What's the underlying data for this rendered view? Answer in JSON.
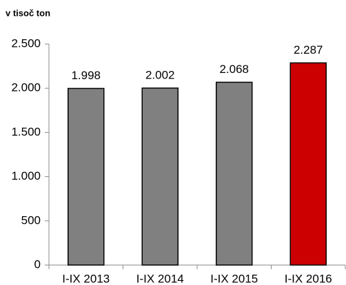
{
  "chart_data": {
    "type": "bar",
    "title": "v tisoč ton",
    "categories": [
      "I-IX 2013",
      "I-IX 2014",
      "I-IX 2015",
      "I-IX 2016"
    ],
    "values": [
      1998,
      2002,
      2068,
      2287
    ],
    "value_labels": [
      "1.998",
      "2.002",
      "2.068",
      "2.287"
    ],
    "colors": [
      "#808080",
      "#808080",
      "#808080",
      "#cc0000"
    ],
    "ylim": [
      0,
      2500
    ],
    "yticks": [
      0,
      500,
      {
        "value": 1000,
        "label": "1.000"
      },
      {
        "value": 1500,
        "label": "1.500"
      },
      {
        "value": 2000,
        "label": "2.000"
      },
      {
        "value": 2500,
        "label": "2.500"
      }
    ],
    "grid": false
  }
}
